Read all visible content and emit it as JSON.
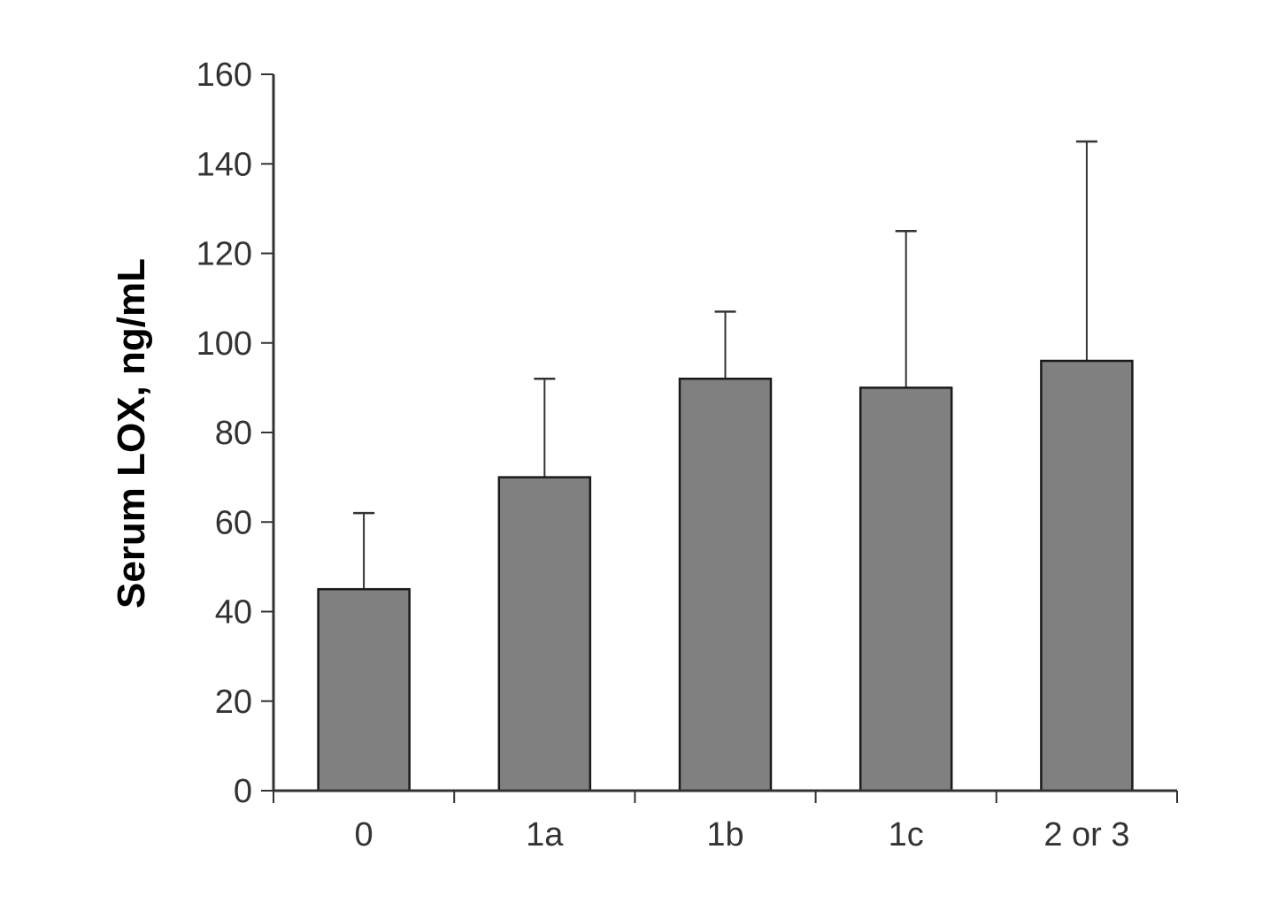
{
  "chart_data": {
    "type": "bar",
    "title": "",
    "xlabel": "",
    "ylabel": "Serum LOX, ng/mL",
    "categories": [
      "0",
      "1a",
      "1b",
      "1c",
      "2 or 3"
    ],
    "values": [
      45,
      70,
      92,
      90,
      96
    ],
    "error_upper": [
      62,
      92,
      107,
      125,
      145
    ],
    "ylim": [
      0,
      160
    ],
    "yticks": [
      "0",
      "20",
      "40",
      "60",
      "80",
      "100",
      "120",
      "140",
      "160"
    ],
    "grid": false,
    "legend": "none",
    "colors": {
      "bar_fill": "#808080",
      "bar_stroke": "#1a1a1a",
      "axis": "#333333",
      "error_bar": "#333333"
    }
  }
}
